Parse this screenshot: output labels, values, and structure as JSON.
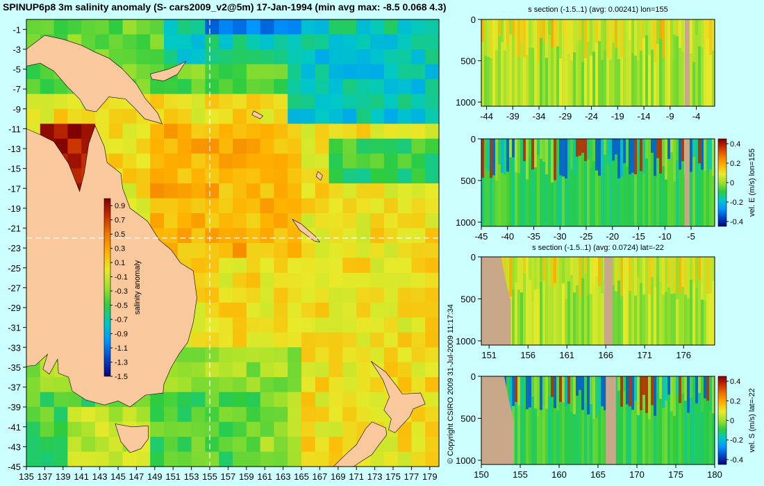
{
  "header": {
    "title": "SPINUP6p8 3m salinity anomaly (S- cars2009_v2@5m) 17-Jan-1994 (min avg max: -8.5 0.068 4.3)",
    "copyright": "© Copyright CSIRO 2009   31-Jul-2009 11:17:34"
  },
  "colors": {
    "background": "#ccffff",
    "land": "#f9c89c",
    "land_section": "#c8a888",
    "crosshair": "#ffffff"
  },
  "colormap": [
    "#00007a",
    "#0047c8",
    "#0096ff",
    "#00c8c8",
    "#2ecc40",
    "#9ee02c",
    "#e8ea2a",
    "#ffb000",
    "#f07800",
    "#c83000",
    "#800000"
  ],
  "chart_data": [
    {
      "type": "heatmap",
      "name": "salinity-map",
      "title": "SPINUP6p8 3m salinity anomaly (S- cars2009_v2@5m) 17-Jan-1994 (min avg max: -8.5 0.068 4.3)",
      "x_ticks": [
        135,
        137,
        139,
        141,
        143,
        145,
        147,
        149,
        151,
        153,
        155,
        157,
        159,
        161,
        163,
        165,
        167,
        169,
        171,
        173,
        175,
        177,
        179
      ],
      "y_ticks": [
        -1,
        -3,
        -5,
        -7,
        -9,
        -11,
        -13,
        -15,
        -17,
        -19,
        -21,
        -23,
        -25,
        -27,
        -29,
        -31,
        -33,
        -35,
        -37,
        -39,
        -41,
        -43,
        -45
      ],
      "xlim": [
        135,
        180
      ],
      "ylim": [
        -45,
        0
      ],
      "crosshair": {
        "lon": 155,
        "lat": -22
      },
      "colorbar": {
        "label": "salinity anomaly",
        "ticks": [
          "0.9",
          "0.7",
          "0.5",
          "0.3",
          "0.1",
          "-0.1",
          "-0.3",
          "-0.5",
          "-0.7",
          "-0.9",
          "-1.1",
          "-1.3",
          "-1.5"
        ],
        "range": [
          -1.5,
          1.0
        ]
      }
    },
    {
      "type": "heatmap",
      "name": "s-section-lon155",
      "title": "s section (-1.5..1) (avg: 0.00241) lon=155",
      "x_ticks": [
        "-44",
        "-39",
        "-34",
        "-29",
        "-24",
        "-19",
        "-14",
        "-9",
        "-4"
      ],
      "xlim": [
        -45,
        -0.5
      ],
      "y_ticks": [
        "0",
        "500",
        "1000"
      ],
      "ylim": [
        1050,
        0
      ]
    },
    {
      "type": "heatmap",
      "name": "vel-e-section-lon155",
      "title": "",
      "x_ticks": [
        "-45",
        "-40",
        "-35",
        "-30",
        "-25",
        "-20",
        "-15",
        "-10",
        "-5"
      ],
      "xlim": [
        -45,
        -0.5
      ],
      "y_ticks": [
        "0",
        "500",
        "1000"
      ],
      "ylim": [
        1050,
        0
      ],
      "colorbar": {
        "label": "vel. E (m/s) lon=155",
        "ticks": [
          "0.4",
          "0.2",
          "0",
          "-0.2",
          "-0.4"
        ],
        "range": [
          -0.45,
          0.45
        ]
      }
    },
    {
      "type": "heatmap",
      "name": "s-section-lat-22",
      "title": "s section (-1.5..1) (avg: 0.0724) lat=-22",
      "x_ticks": [
        "151",
        "156",
        "161",
        "166",
        "171",
        "176"
      ],
      "xlim": [
        150,
        180
      ],
      "y_ticks": [
        "0",
        "500",
        "1000"
      ],
      "ylim": [
        1050,
        0
      ]
    },
    {
      "type": "heatmap",
      "name": "vel-s-section-lat-22",
      "title": "",
      "x_ticks": [
        "150",
        "155",
        "160",
        "165",
        "170",
        "175",
        "180"
      ],
      "xlim": [
        150,
        180
      ],
      "y_ticks": [
        "0",
        "500",
        "1000"
      ],
      "ylim": [
        1050,
        0
      ],
      "colorbar": {
        "label": "vel. S (m/s) lat=-22",
        "ticks": [
          "0.4",
          "0.2",
          "0",
          "-0.2",
          "-0.4"
        ],
        "range": [
          -0.45,
          0.45
        ]
      }
    }
  ]
}
